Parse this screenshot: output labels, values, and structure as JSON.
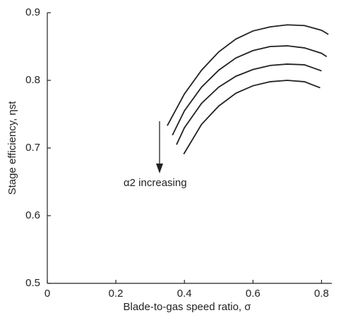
{
  "chart_data": {
    "type": "line",
    "xlabel": "Blade-to-gas speed ratio, σ",
    "ylabel": "Stage efficiency, ηst",
    "annotation": "α2 increasing",
    "xlim": [
      0,
      0.83
    ],
    "xticks": [
      0,
      0.2,
      0.4,
      0.6,
      0.8
    ],
    "ylim": [
      0.5,
      0.9
    ],
    "yticks": [
      0.5,
      0.6,
      0.7,
      0.8,
      0.9
    ],
    "series": [
      {
        "color": "#222222",
        "x": [
          0.35,
          0.4,
          0.45,
          0.5,
          0.55,
          0.6,
          0.65,
          0.7,
          0.75,
          0.8,
          0.82
        ],
        "values": [
          0.733,
          0.78,
          0.815,
          0.842,
          0.861,
          0.873,
          0.879,
          0.882,
          0.881,
          0.874,
          0.868
        ]
      },
      {
        "color": "#222222",
        "x": [
          0.365,
          0.4,
          0.45,
          0.5,
          0.55,
          0.6,
          0.65,
          0.7,
          0.75,
          0.8,
          0.815
        ],
        "values": [
          0.719,
          0.755,
          0.79,
          0.815,
          0.833,
          0.844,
          0.85,
          0.851,
          0.848,
          0.84,
          0.835
        ]
      },
      {
        "color": "#222222",
        "x": [
          0.377,
          0.4,
          0.45,
          0.5,
          0.55,
          0.6,
          0.65,
          0.7,
          0.75,
          0.8
        ],
        "values": [
          0.705,
          0.73,
          0.766,
          0.79,
          0.806,
          0.816,
          0.822,
          0.824,
          0.823,
          0.814
        ]
      },
      {
        "color": "#222222",
        "x": [
          0.398,
          0.45,
          0.5,
          0.55,
          0.6,
          0.65,
          0.7,
          0.75,
          0.796
        ],
        "values": [
          0.691,
          0.735,
          0.762,
          0.781,
          0.792,
          0.798,
          0.8,
          0.798,
          0.789
        ]
      }
    ]
  }
}
